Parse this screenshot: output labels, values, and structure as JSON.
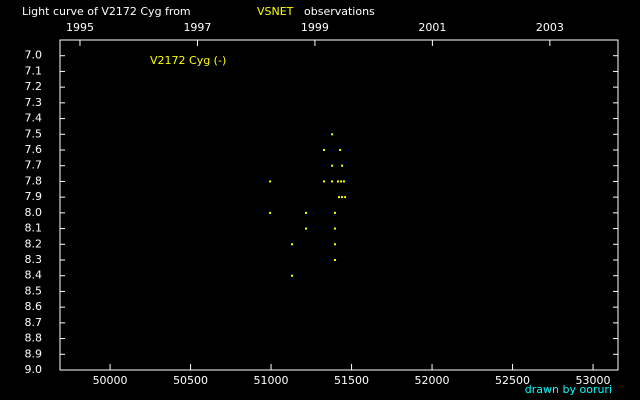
{
  "chart_data": {
    "type": "scatter",
    "title": "Light curve of V2172 Cyg from",
    "title_source": "VSNET",
    "title_suffix": "observations",
    "title_source_color": "#ffff00",
    "credit": "drawn by ooruri",
    "credit_color": "#00ffff",
    "series": [
      {
        "name": "V2172 Cyg (-)",
        "color": "#ffff00",
        "x": [
          50994,
          50994,
          51130,
          51130,
          51217,
          51217,
          51329,
          51329,
          51379,
          51379,
          51379,
          51397,
          51397,
          51397,
          51397,
          51429,
          51441,
          51416,
          51435,
          51453,
          51422,
          51441,
          51460
        ],
        "values": [
          7.8,
          8.0,
          8.2,
          8.4,
          8.0,
          8.1,
          7.6,
          7.8,
          7.5,
          7.7,
          7.8,
          8.0,
          8.1,
          8.2,
          8.3,
          7.6,
          7.7,
          7.8,
          7.8,
          7.8,
          7.9,
          7.9,
          7.9
        ]
      }
    ],
    "xlim": [
      49689,
      53155
    ],
    "xticks": [
      50000,
      50500,
      51000,
      51500,
      52000,
      52500,
      53000
    ],
    "x2lim": [
      1994.66,
      2004.16
    ],
    "x2ticks": [
      1995,
      1997,
      1999,
      2001,
      2003
    ],
    "ylim": [
      9.0,
      6.9
    ],
    "yticks": [
      {
        "value": 7,
        "label": "7.0"
      },
      7.1,
      7.2,
      7.3,
      7.4,
      7.5,
      7.6,
      7.7,
      7.8,
      7.9,
      {
        "value": 8,
        "label": "8.0"
      },
      8.1,
      8.2,
      8.3,
      8.4,
      8.5,
      8.6,
      8.7,
      8.8,
      8.9,
      {
        "value": 9,
        "label": "9.0"
      }
    ]
  }
}
